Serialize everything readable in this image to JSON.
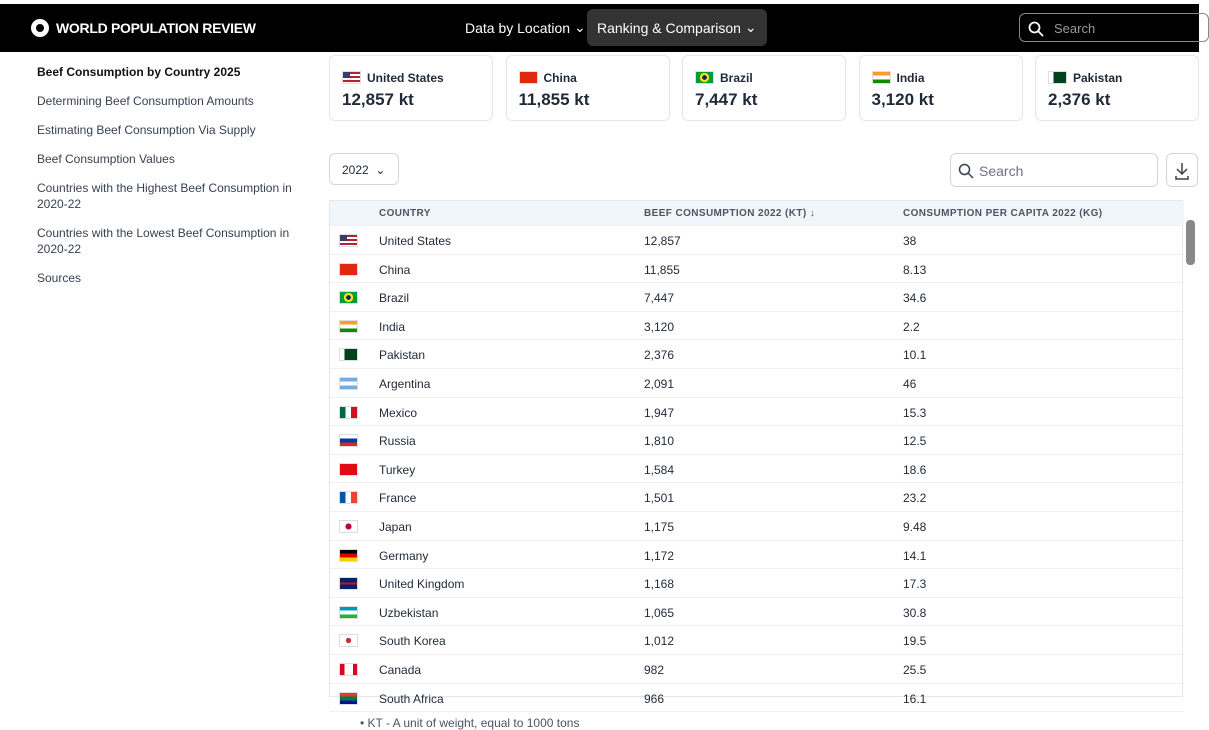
{
  "header": {
    "logo": "WORLD POPULATION REVIEW",
    "nav": [
      "Data by Location",
      "Ranking & Comparison"
    ],
    "search": "Search"
  },
  "sidebar": [
    "Beef Consumption by Country 2025",
    "Determining Beef Consumption Amounts",
    "Estimating Beef Consumption Via Supply",
    "Beef Consumption Values",
    "Countries with the Highest Beef Consumption in 2020-22",
    "Countries with the Lowest Beef Consumption in 2020-22",
    "Sources"
  ],
  "cards": [
    {
      "country": "United States",
      "value": "12,857 kt"
    },
    {
      "country": "China",
      "value": "11,855 kt"
    },
    {
      "country": "Brazil",
      "value": "7,447 kt"
    },
    {
      "country": "India",
      "value": "3,120 kt"
    },
    {
      "country": "Pakistan",
      "value": "2,376 kt"
    }
  ],
  "controls": {
    "year": "2022",
    "search": "Search"
  },
  "table": {
    "columns": [
      "COUNTRY",
      "BEEF CONSUMPTION 2022 (KT) ↓",
      "CONSUMPTION PER CAPITA 2022 (KG)"
    ],
    "rows": [
      [
        "United States",
        "12,857",
        "38"
      ],
      [
        "China",
        "11,855",
        "8.13"
      ],
      [
        "Brazil",
        "7,447",
        "34.6"
      ],
      [
        "India",
        "3,120",
        "2.2"
      ],
      [
        "Pakistan",
        "2,376",
        "10.1"
      ],
      [
        "Argentina",
        "2,091",
        "46"
      ],
      [
        "Mexico",
        "1,947",
        "15.3"
      ],
      [
        "Russia",
        "1,810",
        "12.5"
      ],
      [
        "Turkey",
        "1,584",
        "18.6"
      ],
      [
        "France",
        "1,501",
        "23.2"
      ],
      [
        "Japan",
        "1,175",
        "9.48"
      ],
      [
        "Germany",
        "1,172",
        "14.1"
      ],
      [
        "United Kingdom",
        "1,168",
        "17.3"
      ],
      [
        "Uzbekistan",
        "1,065",
        "30.8"
      ],
      [
        "South Korea",
        "1,012",
        "19.5"
      ],
      [
        "Canada",
        "982",
        "25.5"
      ],
      [
        "South Africa",
        "966",
        "16.1"
      ]
    ]
  },
  "footnote": "KT - A unit of weight, equal to 1000 tons"
}
